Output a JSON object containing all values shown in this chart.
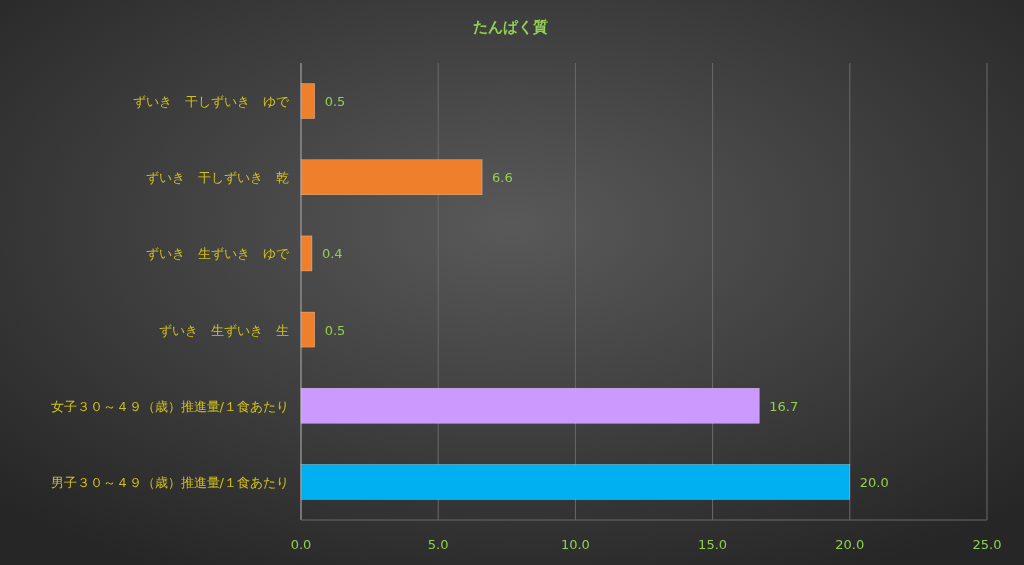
{
  "chart_data": {
    "type": "bar",
    "orientation": "horizontal",
    "title": "たんぱく質",
    "categories": [
      "ずいき　干しずいき　ゆで",
      "ずいき　干しずいき　乾",
      "ずいき　生ずいき　ゆで",
      "ずいき　生ずいき　生",
      "女子３０～４９（歳）推進量/１食あたり",
      "男子３０～４９（歳）推進量/１食あたり"
    ],
    "values": [
      0.5,
      6.6,
      0.4,
      0.5,
      16.7,
      20.0
    ],
    "colors": [
      "#f07f2c",
      "#f07f2c",
      "#f07f2c",
      "#f07f2c",
      "#cc99ff",
      "#00b0f0"
    ],
    "value_labels": [
      "0.5",
      "6.6",
      "0.4",
      "0.5",
      "16.7",
      "20.0"
    ],
    "xlim": [
      0,
      25
    ],
    "xticks": [
      {
        "value": 0,
        "label": "0.0"
      },
      {
        "value": 5,
        "label": "5.0"
      },
      {
        "value": 10,
        "label": "10.0"
      },
      {
        "value": 15,
        "label": "15.0"
      },
      {
        "value": 20,
        "label": "20.0"
      },
      {
        "value": 25,
        "label": "25.0"
      }
    ],
    "grid": "x"
  }
}
